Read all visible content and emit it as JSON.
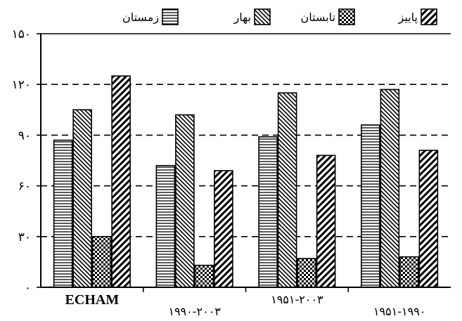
{
  "chart_data": {
    "type": "bar",
    "categories": [
      "ECHAM",
      "۱۹۹۰-۲۰۰۳",
      "۱۹۵۱-۲۰۰۳",
      "۱۹۵۱-۱۹۹۰"
    ],
    "series": [
      {
        "name": "زمستان",
        "pattern": "horizontal-lines",
        "values": [
          87,
          72,
          89,
          96
        ]
      },
      {
        "name": "بهار",
        "pattern": "back-diagonal",
        "values": [
          105,
          102,
          115,
          117
        ]
      },
      {
        "name": "تابستان",
        "pattern": "checkered",
        "values": [
          30,
          13,
          17,
          18
        ]
      },
      {
        "name": "پاییز",
        "pattern": "forward-diagonal",
        "values": [
          125,
          69,
          78,
          81
        ]
      }
    ],
    "y_ticks": [
      "٠",
      "۳٠",
      "۶٠",
      "۹٠",
      "۱۲٠",
      "۱۵٠"
    ],
    "y_tick_values": [
      0,
      30,
      60,
      90,
      120,
      150
    ],
    "ylim": [
      0,
      150
    ],
    "grid": "dashed horizontal at ticks",
    "legend_position": "top"
  }
}
